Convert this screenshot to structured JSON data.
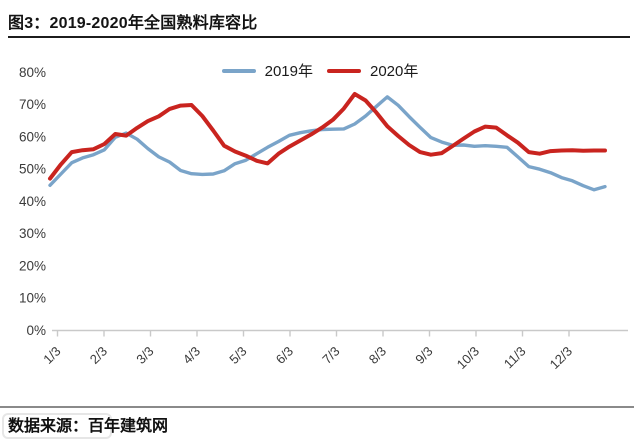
{
  "figure": {
    "title": "图3：2019-2020年全国熟料库容比",
    "source": "数据来源：百年建筑网"
  },
  "colors": {
    "series_2019": "#7AA4C9",
    "series_2020": "#C9241F",
    "axis": "#C9C9C9",
    "tick_text": "#3A3A3A",
    "title_text": "#141414"
  },
  "chart_data": {
    "type": "line",
    "title": "2019-2020年全国熟料库容比",
    "grid": false,
    "legend_position": "top-center",
    "x_axis": {
      "tick_labels": [
        "1/3",
        "2/3",
        "3/3",
        "4/3",
        "5/3",
        "6/3",
        "7/3",
        "8/3",
        "9/3",
        "10/3",
        "11/3",
        "12/3"
      ]
    },
    "y_axis": {
      "tick_labels": [
        "0%",
        "10%",
        "20%",
        "30%",
        "40%",
        "50%",
        "60%",
        "70%",
        "80%"
      ],
      "min": 0,
      "max": 80,
      "unit": "%"
    },
    "series": [
      {
        "name": "2019年",
        "color": "#7AA4C9",
        "unit": "%",
        "values": [
          45.0,
          48.5,
          52.0,
          53.5,
          54.5,
          56.0,
          59.9,
          61.2,
          59.3,
          56.4,
          53.8,
          52.2,
          49.6,
          48.6,
          48.4,
          48.5,
          49.5,
          51.7,
          52.8,
          54.8,
          56.8,
          58.6,
          60.5,
          61.3,
          61.9,
          62.3,
          62.4,
          62.5,
          64.0,
          66.5,
          69.5,
          72.4,
          69.8,
          66.3,
          63.0,
          59.8,
          58.4,
          57.4,
          57.5,
          57.1,
          57.3,
          57.1,
          56.8,
          53.8,
          50.8,
          50.0,
          48.9,
          47.4,
          46.4,
          44.9,
          43.6,
          44.6
        ]
      },
      {
        "name": "2020年",
        "color": "#C9241F",
        "unit": "%",
        "values": [
          47.1,
          51.5,
          55.3,
          55.9,
          56.2,
          57.8,
          60.9,
          60.4,
          62.8,
          64.9,
          66.4,
          68.7,
          69.7,
          69.9,
          66.5,
          62.0,
          57.3,
          55.5,
          54.2,
          52.6,
          51.8,
          54.8,
          57.0,
          58.9,
          60.8,
          62.9,
          65.3,
          68.8,
          73.3,
          71.3,
          67.5,
          63.3,
          60.3,
          57.5,
          55.3,
          54.5,
          55.0,
          57.2,
          59.5,
          61.7,
          63.2,
          62.9,
          60.5,
          58.2,
          55.3,
          54.8,
          55.6,
          55.8,
          55.9,
          55.7,
          55.8,
          55.8
        ]
      }
    ]
  }
}
